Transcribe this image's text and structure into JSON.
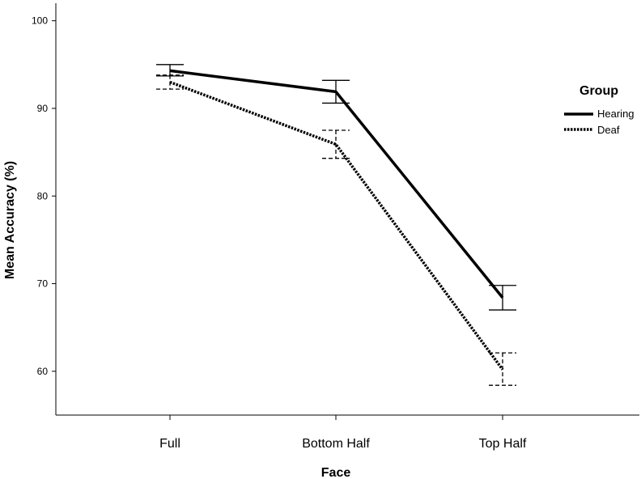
{
  "chart_data": {
    "type": "line",
    "xlabel": "Face",
    "ylabel": "Mean Accuracy (%)",
    "ylim": [
      55,
      102
    ],
    "yticks": [
      60,
      70,
      80,
      90,
      100
    ],
    "categories": [
      "Full",
      "Bottom Half",
      "Top Half"
    ],
    "grid": false,
    "legend": {
      "title": "Group",
      "position": "right"
    },
    "series": [
      {
        "name": "Hearing",
        "style": "solid",
        "color": "#000000",
        "values": [
          94.3,
          91.9,
          68.4
        ],
        "error_low": [
          93.7,
          90.6,
          67.0
        ],
        "error_high": [
          95.0,
          93.2,
          69.8
        ]
      },
      {
        "name": "Deaf",
        "style": "dotted",
        "color": "#000000",
        "values": [
          93.0,
          85.9,
          60.2
        ],
        "error_low": [
          92.2,
          84.3,
          58.4
        ],
        "error_high": [
          93.8,
          87.5,
          62.1
        ]
      }
    ]
  }
}
